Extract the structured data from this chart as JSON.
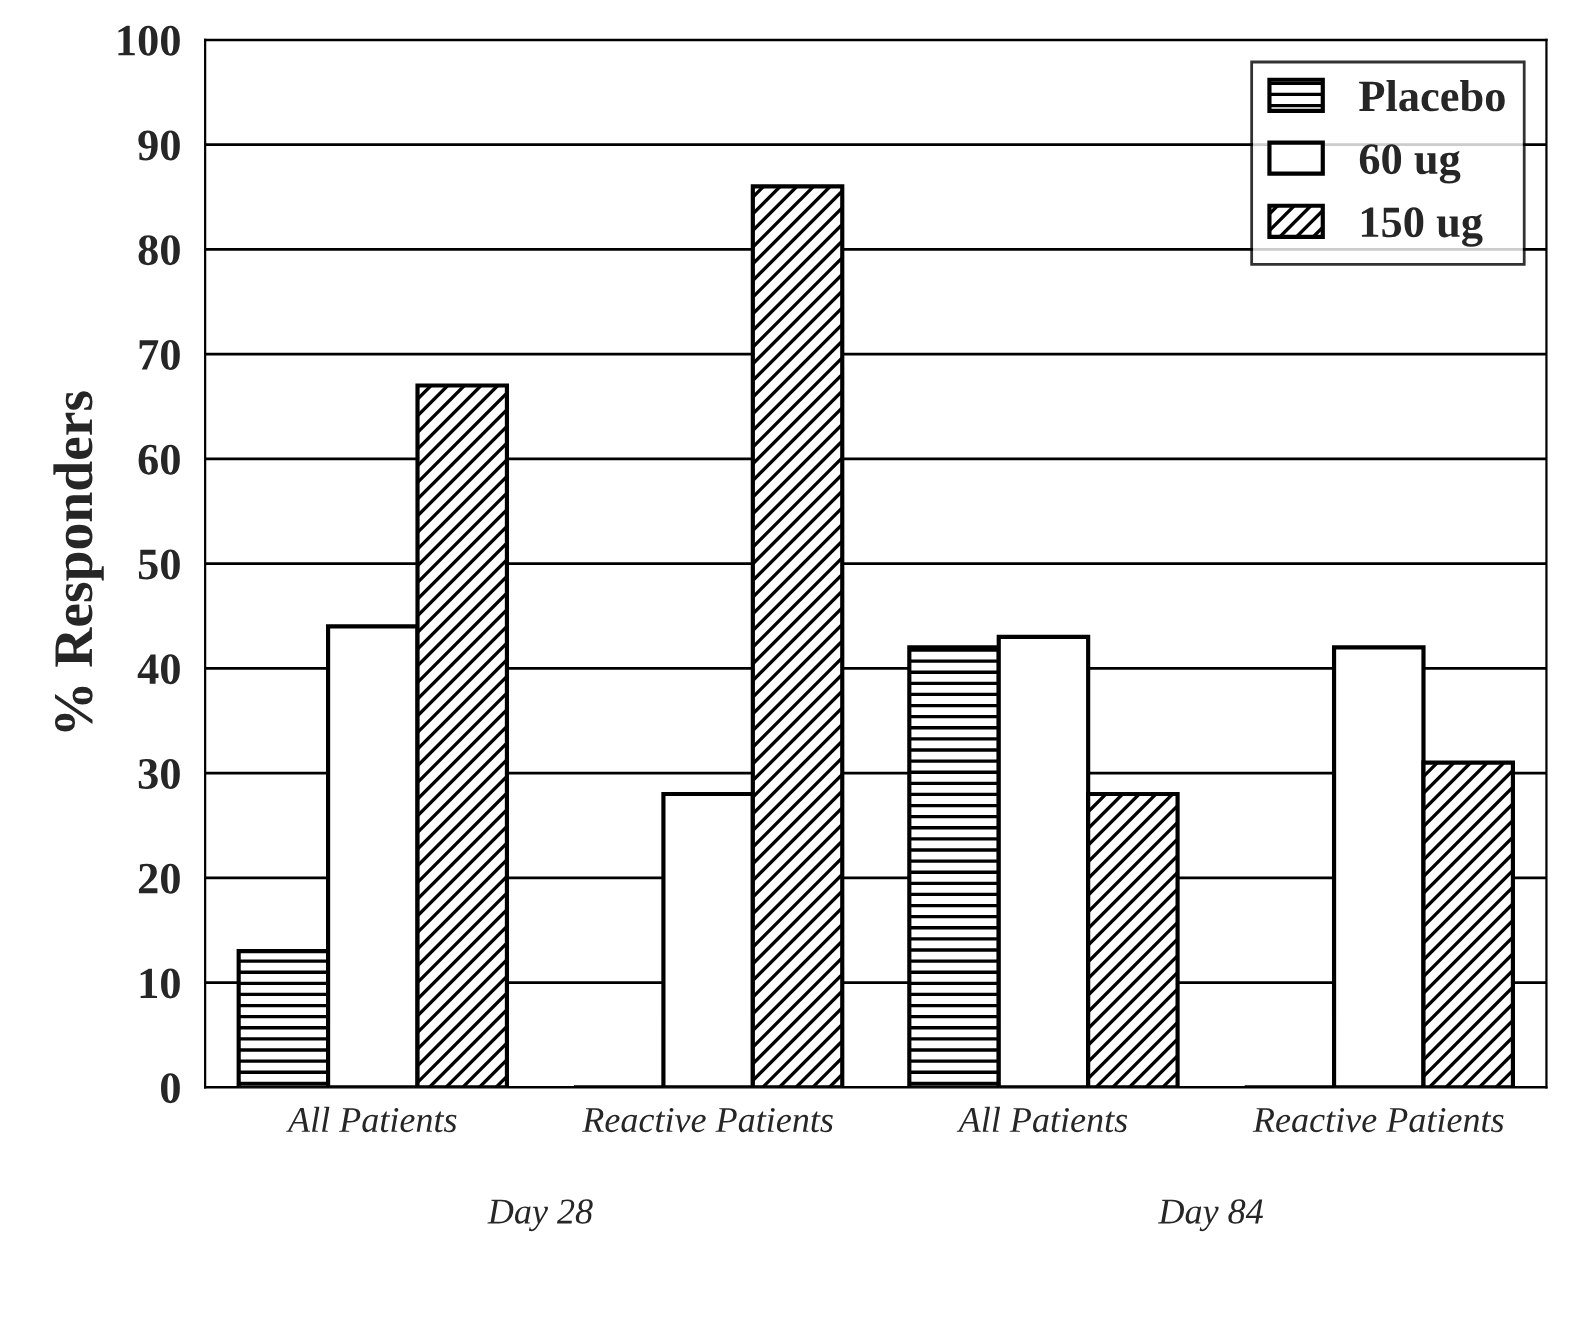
{
  "chart_data": {
    "type": "bar",
    "ylabel": "% Responders",
    "categories": [
      "All Patients",
      "Reactive Patients",
      "All Patients",
      "Reactive Patients"
    ],
    "series": [
      {
        "name": "Placebo",
        "color": "#000000",
        "values": [
          13,
          0,
          42,
          0
        ]
      },
      {
        "name": "60 ug",
        "color": "#ffffff",
        "values": [
          44,
          28,
          43,
          42
        ]
      },
      {
        "name": "150 ug",
        "color": "#000000",
        "values": [
          67,
          86,
          28,
          31
        ]
      }
    ],
    "annotations": [
      "Day 28",
      "Day 84"
    ],
    "ylim": [
      0,
      100
    ],
    "yticks": [
      0,
      10,
      20,
      30,
      40,
      50,
      60,
      70,
      80,
      90,
      100
    ],
    "grid": "y",
    "legend": "top right"
  }
}
